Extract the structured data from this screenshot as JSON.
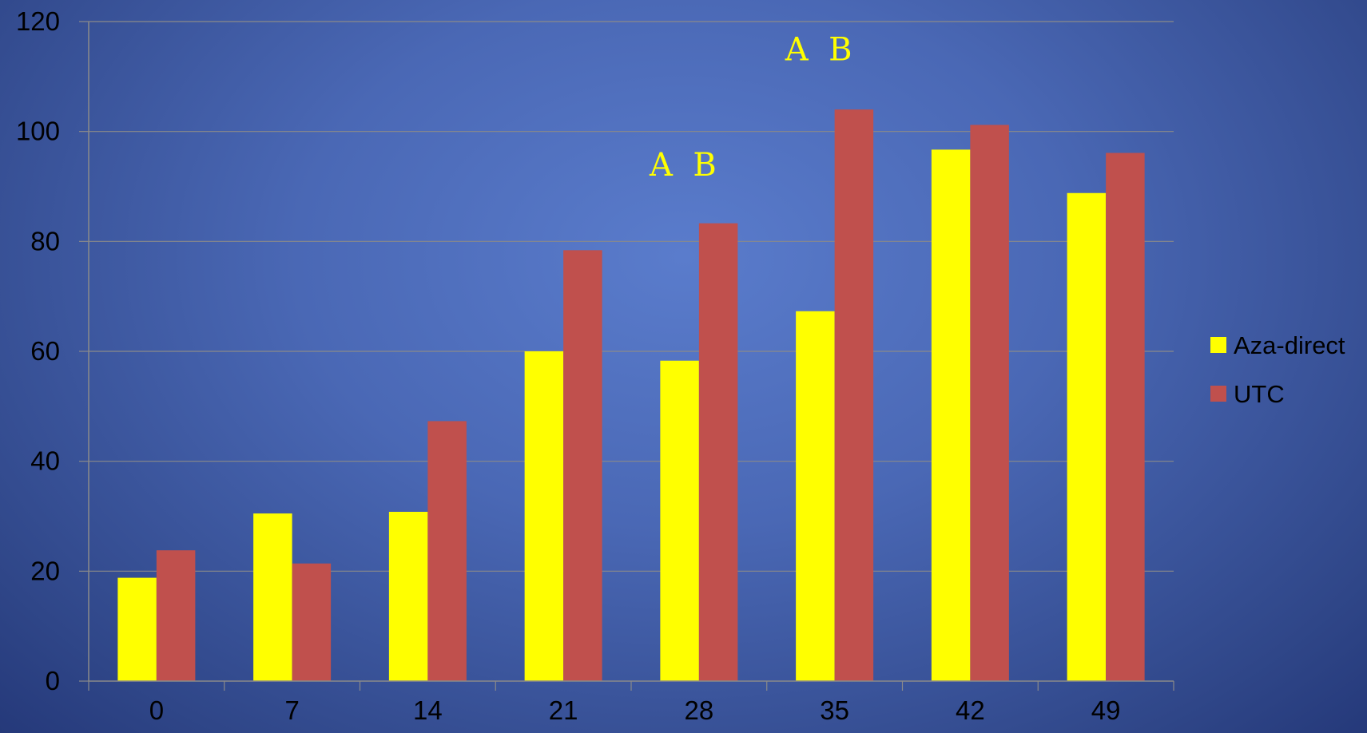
{
  "chart_data": {
    "type": "bar",
    "categories": [
      "0",
      "7",
      "14",
      "21",
      "28",
      "35",
      "42",
      "49"
    ],
    "series": [
      {
        "name": "Aza-direct",
        "color": "#ffff00",
        "values": [
          18.8,
          30.5,
          30.8,
          60.0,
          58.3,
          67.3,
          96.7,
          88.8
        ]
      },
      {
        "name": "UTC",
        "color": "#c0504d",
        "values": [
          23.8,
          21.4,
          47.3,
          78.4,
          83.3,
          104.0,
          101.2,
          96.1
        ]
      }
    ],
    "ylim": [
      0,
      120
    ],
    "yticks": [
      0,
      20,
      40,
      60,
      80,
      100,
      120
    ],
    "grid": true,
    "legend": "right",
    "annotations": [
      {
        "category": "28",
        "y": 94,
        "text": "A  B"
      },
      {
        "category": "35",
        "y": 115,
        "text": "A  B"
      }
    ]
  }
}
